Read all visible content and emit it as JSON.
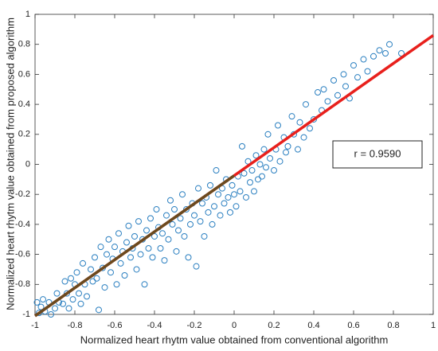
{
  "chart_data": {
    "type": "scatter",
    "x_label": "Normalized heart rhytm value obtained from conventional algorithm",
    "y_label": "Normalized heart rhytm value obtained from proposed algorithm",
    "annotation": "r = 0.9590",
    "color": "#2a7fc0",
    "xlim": [
      -1,
      1
    ],
    "ylim": [
      -1,
      1
    ],
    "xticks": [
      -1,
      -0.8,
      -0.6,
      -0.4,
      -0.2,
      0,
      0.2,
      0.4,
      0.6,
      0.8,
      1
    ],
    "yticks": [
      -1,
      -0.8,
      -0.6,
      -0.4,
      -0.2,
      0,
      0.2,
      0.4,
      0.6,
      0.8,
      1
    ],
    "x": [
      -0.99,
      -0.98,
      -0.97,
      -0.96,
      -0.95,
      -0.93,
      -0.92,
      -0.9,
      -0.89,
      -0.88,
      -0.86,
      -0.85,
      -0.84,
      -0.83,
      -0.82,
      -0.81,
      -0.8,
      -0.79,
      -0.78,
      -0.77,
      -0.76,
      -0.75,
      -0.74,
      -0.72,
      -0.71,
      -0.7,
      -0.69,
      -0.68,
      -0.67,
      -0.66,
      -0.65,
      -0.64,
      -0.63,
      -0.62,
      -0.61,
      -0.6,
      -0.59,
      -0.58,
      -0.57,
      -0.56,
      -0.55,
      -0.54,
      -0.53,
      -0.52,
      -0.51,
      -0.5,
      -0.49,
      -0.48,
      -0.47,
      -0.46,
      -0.45,
      -0.44,
      -0.43,
      -0.42,
      -0.41,
      -0.4,
      -0.39,
      -0.38,
      -0.37,
      -0.36,
      -0.35,
      -0.34,
      -0.33,
      -0.32,
      -0.31,
      -0.3,
      -0.29,
      -0.28,
      -0.27,
      -0.26,
      -0.25,
      -0.24,
      -0.23,
      -0.22,
      -0.21,
      -0.2,
      -0.19,
      -0.18,
      -0.17,
      -0.16,
      -0.15,
      -0.14,
      -0.13,
      -0.12,
      -0.11,
      -0.1,
      -0.09,
      -0.08,
      -0.07,
      -0.06,
      -0.05,
      -0.04,
      -0.03,
      -0.02,
      -0.01,
      0,
      0.01,
      0.02,
      0.03,
      0.04,
      0.05,
      0.06,
      0.07,
      0.08,
      0.09,
      0.1,
      0.11,
      0.12,
      0.13,
      0.14,
      0.15,
      0.16,
      0.17,
      0.18,
      0.2,
      0.21,
      0.22,
      0.23,
      0.25,
      0.26,
      0.27,
      0.29,
      0.3,
      0.32,
      0.33,
      0.35,
      0.36,
      0.38,
      0.4,
      0.42,
      0.44,
      0.45,
      0.47,
      0.5,
      0.52,
      0.55,
      0.56,
      0.58,
      0.6,
      0.62,
      0.65,
      0.67,
      0.7,
      0.73,
      0.76,
      0.78,
      0.84
    ],
    "y": [
      -0.92,
      -0.99,
      -0.95,
      -0.9,
      -0.98,
      -0.92,
      -1.0,
      -0.96,
      -0.86,
      -0.92,
      -0.93,
      -0.78,
      -0.86,
      -0.96,
      -0.76,
      -0.9,
      -0.8,
      -0.72,
      -0.86,
      -0.93,
      -0.66,
      -0.8,
      -0.88,
      -0.7,
      -0.78,
      -0.62,
      -0.76,
      -0.97,
      -0.55,
      -0.69,
      -0.82,
      -0.6,
      -0.5,
      -0.72,
      -0.63,
      -0.55,
      -0.8,
      -0.46,
      -0.66,
      -0.58,
      -0.74,
      -0.52,
      -0.41,
      -0.62,
      -0.56,
      -0.48,
      -0.7,
      -0.38,
      -0.6,
      -0.5,
      -0.8,
      -0.44,
      -0.56,
      -0.36,
      -0.62,
      -0.48,
      -0.3,
      -0.42,
      -0.56,
      -0.46,
      -0.64,
      -0.34,
      -0.5,
      -0.24,
      -0.4,
      -0.3,
      -0.58,
      -0.44,
      -0.36,
      -0.2,
      -0.48,
      -0.3,
      -0.62,
      -0.4,
      -0.26,
      -0.34,
      -0.68,
      -0.16,
      -0.38,
      -0.26,
      -0.48,
      -0.22,
      -0.32,
      -0.14,
      -0.4,
      -0.28,
      -0.04,
      -0.2,
      -0.34,
      -0.16,
      -0.26,
      -0.1,
      -0.22,
      -0.32,
      -0.14,
      -0.2,
      -0.28,
      -0.08,
      -0.18,
      0.12,
      -0.06,
      -0.22,
      0.02,
      -0.12,
      -0.04,
      -0.18,
      0.06,
      -0.1,
      0,
      -0.08,
      0.1,
      -0.02,
      0.2,
      0.04,
      -0.04,
      0.1,
      0.26,
      0.02,
      0.18,
      0.08,
      0.12,
      0.32,
      0.2,
      0.1,
      0.28,
      0.18,
      0.4,
      0.24,
      0.3,
      0.48,
      0.36,
      0.5,
      0.42,
      0.56,
      0.46,
      0.6,
      0.52,
      0.44,
      0.66,
      0.58,
      0.7,
      0.62,
      0.72,
      0.76,
      0.74,
      0.8,
      0.74
    ],
    "lines": [
      {
        "color": "#e8201c",
        "x": [
          -1,
          1
        ],
        "y": [
          -1.01,
          0.86
        ]
      },
      {
        "color": "#6b4a1e",
        "x": [
          -1,
          0
        ],
        "y": [
          -1.01,
          -0.075
        ]
      }
    ]
  }
}
